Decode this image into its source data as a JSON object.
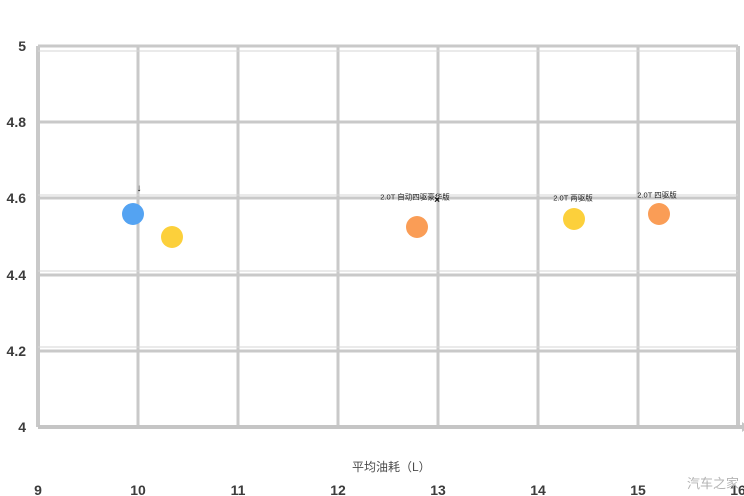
{
  "watermark": "汽车之家",
  "colors": {
    "grid": "#c9c9c9",
    "grid_secondary": "#d6d6d6",
    "tick_text": "#3c3c3c",
    "blue_point": "#54a3f2",
    "yellow_point": "#fcd03b",
    "orange_point": "#fa9d56"
  },
  "chart_data": {
    "type": "scatter",
    "title": "",
    "xlabel": "平均油耗（L）",
    "ylabel": "",
    "xlim": [
      9,
      16
    ],
    "ylim": [
      4,
      5
    ],
    "x_ticks": [
      9,
      10,
      11,
      12,
      13,
      14,
      15,
      16
    ],
    "y_ticks": [
      5,
      4.8,
      4.6,
      4.4,
      4.2,
      4
    ],
    "grid": true,
    "legend": "none",
    "secondary_gridlines_y": [
      4.987,
      4.609,
      4.409,
      4.21
    ],
    "points": [
      {
        "x": 9.95,
        "y": 4.56,
        "color": "#54a3f2",
        "series": "blue"
      },
      {
        "x": 10.34,
        "y": 4.5,
        "color": "#fcd03b",
        "series": "yellow"
      },
      {
        "x": 12.79,
        "y": 4.525,
        "color": "#fa9d56",
        "series": "orange"
      },
      {
        "x": 14.36,
        "y": 4.545,
        "color": "#fcd03b",
        "series": "yellow"
      },
      {
        "x": 15.21,
        "y": 4.56,
        "color": "#fa9d56",
        "series": "orange"
      }
    ],
    "annotations": [
      {
        "text": "2.0T 自动四驱豪华版",
        "x": 12.77,
        "y": 4.604
      },
      {
        "text": "2.0T 两驱版",
        "x": 14.35,
        "y": 4.601
      },
      {
        "text": "2.0T 四驱版",
        "x": 15.19,
        "y": 4.609
      }
    ],
    "markers": [
      {
        "glyph": "↓",
        "x": 10.01,
        "y": 4.625
      },
      {
        "glyph": "×",
        "x": 12.99,
        "y": 4.593
      }
    ]
  }
}
